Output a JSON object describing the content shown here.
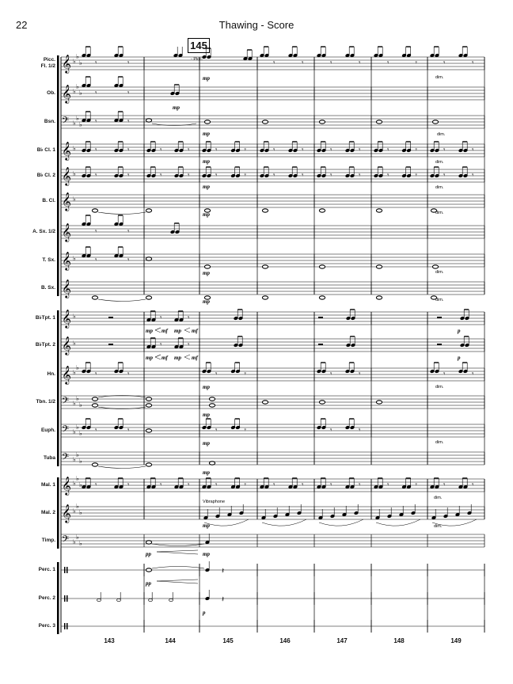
{
  "header": {
    "page_number": "22",
    "title": "Thawing - Score"
  },
  "rehearsal_mark": "145",
  "picc_cue": "- Picc.",
  "instruments": [
    {
      "label": "Picc.\nFl. 1/2",
      "clef": "treble",
      "key": "eb"
    },
    {
      "label": "Ob.",
      "clef": "treble",
      "key": "eb"
    },
    {
      "label": "Bsn.",
      "clef": "bass",
      "key": "eb"
    },
    {
      "label": "B♭ Cl. 1",
      "clef": "treble",
      "key": "f"
    },
    {
      "label": "B♭ Cl. 2",
      "clef": "treble",
      "key": "f"
    },
    {
      "label": "B. Cl.",
      "clef": "treble",
      "key": "f"
    },
    {
      "label": "A. Sx. 1/2",
      "clef": "treble",
      "key": "c"
    },
    {
      "label": "T. Sx.",
      "clef": "treble",
      "key": "f"
    },
    {
      "label": "B. Sx.",
      "clef": "treble",
      "key": "c"
    },
    {
      "label": "B♭Tpt. 1",
      "clef": "treble",
      "key": "f"
    },
    {
      "label": "B♭Tpt. 2",
      "clef": "treble",
      "key": "f"
    },
    {
      "label": "Hn.",
      "clef": "treble",
      "key": "bb"
    },
    {
      "label": "Tbn. 1/2",
      "clef": "bass",
      "key": "eb"
    },
    {
      "label": "Euph.",
      "clef": "bass",
      "key": "eb"
    },
    {
      "label": "Tuba",
      "clef": "bass",
      "key": "eb"
    },
    {
      "label": "Mal. 1",
      "clef": "treble",
      "key": "eb"
    },
    {
      "label": "Mal. 2",
      "clef": "treble",
      "key": "eb"
    },
    {
      "label": "Timp.",
      "clef": "bass",
      "key": "eb"
    },
    {
      "label": "Perc. 1",
      "clef": "perc",
      "key": "c"
    },
    {
      "label": "Perc. 2",
      "clef": "perc",
      "key": "c"
    },
    {
      "label": "Perc. 3",
      "clef": "perc",
      "key": "c"
    }
  ],
  "measure_numbers": [
    "143",
    "144",
    "145",
    "146",
    "147",
    "148",
    "149"
  ],
  "dynamics": {
    "mp": "mp",
    "mf": "mf",
    "pp": "pp",
    "p": "p",
    "dim": "dim."
  },
  "vibraphone_text": "Vibraphone"
}
